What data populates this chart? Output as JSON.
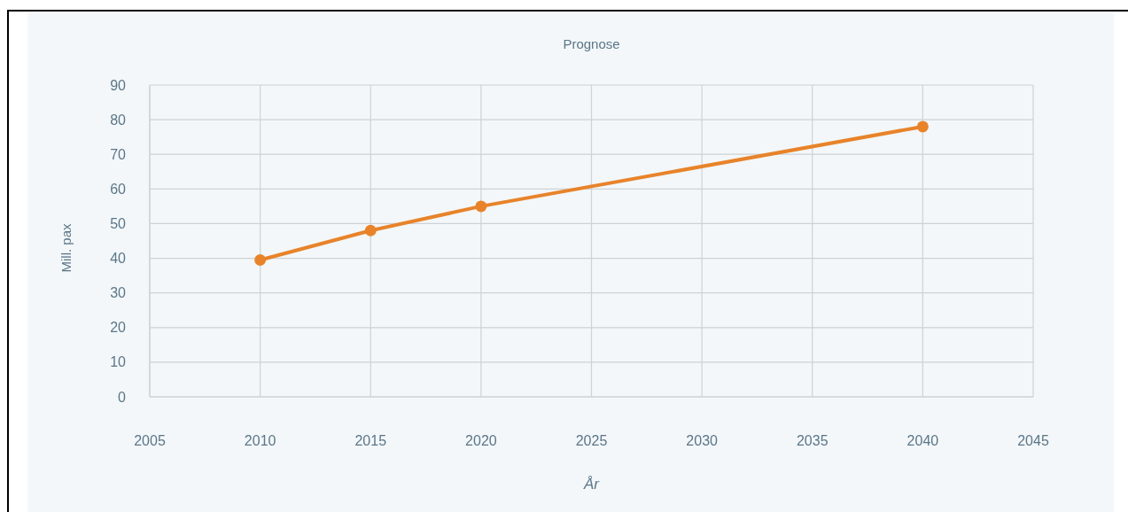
{
  "chart_data": {
    "type": "line",
    "title": "Prognose",
    "xlabel": "År",
    "ylabel": "Mill. pax",
    "x": [
      2010,
      2015,
      2020,
      2040
    ],
    "values": [
      39.5,
      48,
      55,
      78
    ],
    "color": "#e8832a",
    "xlim": [
      2005,
      2045
    ],
    "xticks": [
      2005,
      2010,
      2015,
      2020,
      2025,
      2030,
      2035,
      2040,
      2045
    ],
    "ylim": [
      0,
      90
    ],
    "yticks": [
      0,
      10,
      20,
      30,
      40,
      50,
      60,
      70,
      80,
      90
    ],
    "grid": true,
    "marker": "circle",
    "line_style": "solid"
  }
}
